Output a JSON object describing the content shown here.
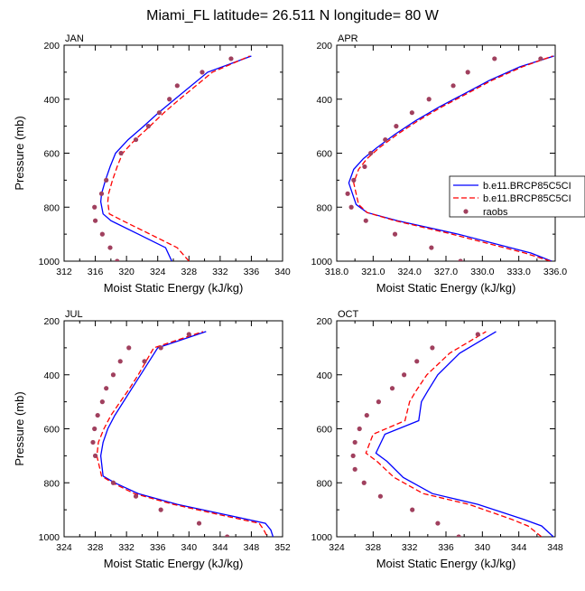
{
  "title": "Miami_FL  latitude= 26.511 N longitude= 80 W",
  "colors": {
    "model1": "#0000ff",
    "model2": "#ff0000",
    "raobs": "#a0405e"
  },
  "legend": {
    "entries": [
      "b.e11.BRCP85C5CI",
      "b.e11.BRCP85C5CI",
      "raobs"
    ],
    "placement": "inside APR panel, right"
  },
  "chart_data": [
    {
      "type": "line",
      "title": "JAN",
      "xlabel": "Moist Static Energy (kJ/kg)",
      "ylabel": "Pressure (mb)",
      "xlim": [
        312,
        340
      ],
      "ylim": [
        1000,
        200
      ],
      "y_inverted": true,
      "xticks": [
        "312",
        "316",
        "320",
        "324",
        "328",
        "332",
        "336",
        "340"
      ],
      "yticks": [
        "200",
        "400",
        "600",
        "800",
        "1000"
      ],
      "series": [
        {
          "name": "b.e11.BRCP85C5CI",
          "kind": "solid",
          "x": [
            325.8,
            325.0,
            321.5,
            318.0,
            317.0,
            316.7,
            316.8,
            317.3,
            317.9,
            318.6,
            320.2,
            322.2,
            324.1,
            326.2,
            330.4,
            336.0
          ],
          "y": [
            1000,
            950,
            900,
            850,
            825,
            780,
            750,
            700,
            650,
            600,
            550,
            500,
            450,
            400,
            300,
            240
          ]
        },
        {
          "name": "b.e11.BRCP85C5CI",
          "kind": "dashed",
          "x": [
            328.0,
            326.5,
            323.0,
            319.5,
            317.8,
            317.6,
            317.7,
            318.2,
            318.8,
            319.5,
            321.1,
            323.0,
            324.8,
            326.8,
            331.0,
            335.8
          ],
          "y": [
            1000,
            950,
            900,
            850,
            825,
            780,
            750,
            700,
            650,
            600,
            550,
            500,
            450,
            400,
            300,
            240
          ]
        },
        {
          "name": "raobs",
          "kind": "dots",
          "x": [
            318.8,
            317.9,
            316.9,
            316.0,
            315.9,
            316.8,
            317.4,
            319.3,
            321.2,
            322.8,
            324.2,
            325.5,
            326.5,
            329.7,
            333.4
          ],
          "y": [
            1000,
            950,
            900,
            850,
            800,
            750,
            700,
            600,
            550,
            500,
            450,
            400,
            350,
            300,
            250
          ]
        }
      ]
    },
    {
      "type": "line",
      "title": "APR",
      "xlabel": "Moist Static Energy (kJ/kg)",
      "ylabel": "",
      "xlim": [
        318.0,
        336.0
      ],
      "ylim": [
        1000,
        200
      ],
      "y_inverted": true,
      "xticks": [
        "318.0",
        "321.0",
        "324.0",
        "327.0",
        "330.0",
        "333.0",
        "336.0"
      ],
      "yticks": [
        "200",
        "400",
        "600",
        "800",
        "1000"
      ],
      "series": [
        {
          "name": "b.e11.BRCP85C5CI",
          "kind": "solid",
          "x": [
            335.7,
            334.0,
            328.0,
            323.0,
            320.5,
            319.6,
            319.0,
            319.4,
            320.2,
            321.3,
            322.8,
            324.5,
            326.4,
            328.5,
            330.6,
            333.1,
            335.9
          ],
          "y": [
            1000,
            970,
            900,
            850,
            820,
            790,
            710,
            660,
            620,
            580,
            530,
            480,
            430,
            380,
            330,
            280,
            240
          ]
        },
        {
          "name": "b.e11.BRCP85C5CI",
          "kind": "dashed",
          "x": [
            335.6,
            333.5,
            327.5,
            322.8,
            320.5,
            319.8,
            319.4,
            319.8,
            320.5,
            321.5,
            323.0,
            324.7,
            326.6,
            328.7,
            330.8,
            333.3,
            335.8
          ],
          "y": [
            1000,
            970,
            900,
            850,
            820,
            790,
            710,
            660,
            620,
            580,
            530,
            480,
            430,
            380,
            330,
            280,
            240
          ]
        },
        {
          "name": "raobs",
          "kind": "dots",
          "x": [
            328.2,
            325.8,
            322.8,
            320.4,
            319.2,
            318.9,
            319.4,
            320.3,
            320.8,
            322.0,
            322.9,
            324.2,
            325.6,
            327.6,
            328.8,
            331.0,
            334.8
          ],
          "y": [
            1000,
            950,
            900,
            850,
            800,
            750,
            700,
            650,
            600,
            550,
            500,
            450,
            400,
            350,
            300,
            250,
            250
          ]
        }
      ]
    },
    {
      "type": "line",
      "title": "JUL",
      "xlabel": "Moist Static Energy (kJ/kg)",
      "ylabel": "Pressure (mb)",
      "xlim": [
        324,
        352
      ],
      "ylim": [
        1000,
        200
      ],
      "y_inverted": true,
      "xticks": [
        "324",
        "328",
        "332",
        "336",
        "340",
        "344",
        "348",
        "352"
      ],
      "yticks": [
        "200",
        "400",
        "600",
        "800",
        "1000"
      ],
      "series": [
        {
          "name": "b.e11.BRCP85C5CI",
          "kind": "solid",
          "x": [
            351.0,
            350.5,
            349.8,
            345.0,
            338.5,
            333.5,
            330.5,
            329.0,
            328.7,
            329.0,
            329.6,
            330.5,
            331.6,
            332.7,
            333.8,
            336.0,
            342.2
          ],
          "y": [
            1020,
            975,
            950,
            920,
            880,
            840,
            800,
            775,
            700,
            650,
            600,
            550,
            500,
            450,
            400,
            300,
            240
          ]
        },
        {
          "name": "b.e11.BRCP85C5CI",
          "kind": "dashed",
          "x": [
            350.4,
            349.6,
            349.0,
            344.2,
            338.0,
            333.0,
            330.2,
            328.8,
            328.2,
            328.4,
            329.1,
            330.0,
            331.2,
            332.4,
            333.5,
            335.5,
            341.8
          ],
          "y": [
            1020,
            975,
            950,
            920,
            880,
            840,
            800,
            775,
            700,
            650,
            600,
            550,
            500,
            450,
            400,
            300,
            240
          ]
        },
        {
          "name": "raobs",
          "kind": "dots",
          "x": [
            344.9,
            341.3,
            336.4,
            333.2,
            330.3,
            328.0,
            327.7,
            327.9,
            328.3,
            328.9,
            329.4,
            330.3,
            331.2,
            332.3,
            334.3,
            336.4,
            340.0
          ],
          "y": [
            1000,
            950,
            900,
            850,
            800,
            700,
            650,
            600,
            550,
            500,
            450,
            400,
            350,
            300,
            350,
            300,
            250
          ]
        }
      ]
    },
    {
      "type": "line",
      "title": "OCT",
      "xlabel": "Moist Static Energy (kJ/kg)",
      "ylabel": "",
      "xlim": [
        324,
        348
      ],
      "ylim": [
        1000,
        200
      ],
      "y_inverted": true,
      "xticks": [
        "324",
        "328",
        "332",
        "336",
        "340",
        "344",
        "348"
      ],
      "yticks": [
        "200",
        "400",
        "600",
        "800",
        "1000"
      ],
      "series": [
        {
          "name": "b.e11.BRCP85C5CI",
          "kind": "solid",
          "x": [
            347.8,
            346.5,
            344.5,
            339.5,
            334.5,
            331.3,
            329.5,
            328.3,
            329.3,
            333.0,
            333.3,
            334.0,
            335.1,
            337.5,
            341.5
          ],
          "y": [
            1000,
            960,
            935,
            880,
            840,
            780,
            720,
            690,
            620,
            570,
            500,
            460,
            400,
            320,
            240
          ]
        },
        {
          "name": "b.e11.BRCP85C5CI",
          "kind": "dashed",
          "x": [
            346.5,
            345.0,
            343.2,
            338.5,
            333.5,
            330.3,
            328.4,
            327.2,
            328.0,
            331.5,
            332.0,
            332.7,
            333.9,
            336.4,
            340.4
          ],
          "y": [
            1000,
            960,
            935,
            880,
            840,
            780,
            720,
            690,
            620,
            570,
            500,
            460,
            400,
            320,
            240
          ]
        },
        {
          "name": "raobs",
          "kind": "dots",
          "x": [
            337.4,
            335.1,
            332.3,
            328.8,
            327.0,
            326.0,
            325.8,
            326.0,
            326.5,
            327.3,
            328.6,
            330.1,
            331.4,
            332.8,
            334.5,
            339.5
          ],
          "y": [
            1000,
            950,
            900,
            850,
            800,
            750,
            700,
            650,
            600,
            550,
            500,
            450,
            400,
            350,
            300,
            250
          ]
        }
      ]
    }
  ]
}
